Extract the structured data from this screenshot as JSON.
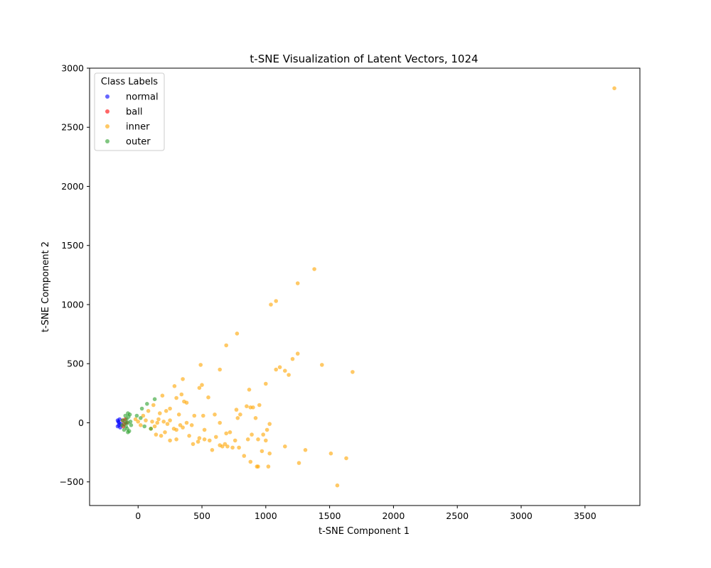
{
  "chart_data": {
    "type": "scatter",
    "title": "t-SNE Visualization of Latent Vectors, 1024",
    "xlabel": "t-SNE Component 1",
    "ylabel": "t-SNE Component 2",
    "xlim": [
      -380,
      3930
    ],
    "ylim": [
      -700,
      3000
    ],
    "xticks": [
      0,
      500,
      1000,
      1500,
      2000,
      2500,
      3000,
      3500
    ],
    "yticks": [
      -500,
      0,
      500,
      1000,
      1500,
      2000,
      2500,
      3000
    ],
    "grid": false,
    "legend": {
      "title": "Class Labels",
      "placement": "top-left"
    },
    "series": [
      {
        "name": "normal",
        "color": "#0000ff",
        "points": [
          [
            -160,
            -30
          ],
          [
            -155,
            10
          ],
          [
            -150,
            -20
          ],
          [
            -145,
            30
          ],
          [
            -140,
            -40
          ],
          [
            -150,
            0
          ],
          [
            -160,
            20
          ],
          [
            -135,
            -10
          ]
        ]
      },
      {
        "name": "ball",
        "color": "#ff0000",
        "points": [
          [
            -120,
            20
          ],
          [
            -110,
            -10
          ],
          [
            -100,
            30
          ],
          [
            -115,
            -30
          ],
          [
            -90,
            0
          ]
        ]
      },
      {
        "name": "inner",
        "color": "#ffa500",
        "points": [
          [
            3730,
            2830
          ],
          [
            1380,
            1300
          ],
          [
            1250,
            1180
          ],
          [
            1080,
            1030
          ],
          [
            1040,
            1000
          ],
          [
            775,
            755
          ],
          [
            690,
            655
          ],
          [
            1680,
            430
          ],
          [
            1440,
            490
          ],
          [
            1250,
            585
          ],
          [
            1210,
            540
          ],
          [
            1150,
            440
          ],
          [
            1180,
            405
          ],
          [
            1080,
            450
          ],
          [
            1110,
            470
          ],
          [
            490,
            490
          ],
          [
            640,
            450
          ],
          [
            350,
            370
          ],
          [
            340,
            240
          ],
          [
            550,
            215
          ],
          [
            285,
            310
          ],
          [
            480,
            295
          ],
          [
            500,
            320
          ],
          [
            300,
            210
          ],
          [
            250,
            120
          ],
          [
            220,
            100
          ],
          [
            190,
            230
          ],
          [
            170,
            80
          ],
          [
            120,
            150
          ],
          [
            80,
            100
          ],
          [
            160,
            30
          ],
          [
            200,
            10
          ],
          [
            230,
            -10
          ],
          [
            250,
            20
          ],
          [
            280,
            -50
          ],
          [
            300,
            -60
          ],
          [
            320,
            70
          ],
          [
            350,
            -40
          ],
          [
            360,
            180
          ],
          [
            380,
            170
          ],
          [
            400,
            -110
          ],
          [
            420,
            -20
          ],
          [
            440,
            60
          ],
          [
            470,
            -160
          ],
          [
            480,
            -130
          ],
          [
            510,
            60
          ],
          [
            520,
            -60
          ],
          [
            560,
            -150
          ],
          [
            580,
            -230
          ],
          [
            600,
            70
          ],
          [
            610,
            -120
          ],
          [
            640,
            0
          ],
          [
            660,
            -200
          ],
          [
            690,
            -90
          ],
          [
            700,
            -200
          ],
          [
            720,
            -80
          ],
          [
            740,
            -210
          ],
          [
            770,
            110
          ],
          [
            780,
            40
          ],
          [
            790,
            -210
          ],
          [
            800,
            70
          ],
          [
            830,
            -280
          ],
          [
            860,
            -140
          ],
          [
            870,
            280
          ],
          [
            880,
            -330
          ],
          [
            890,
            -100
          ],
          [
            900,
            130
          ],
          [
            920,
            40
          ],
          [
            940,
            -140
          ],
          [
            950,
            150
          ],
          [
            970,
            -240
          ],
          [
            980,
            -100
          ],
          [
            1000,
            330
          ],
          [
            1000,
            -150
          ],
          [
            1020,
            -370
          ],
          [
            1030,
            -260
          ],
          [
            940,
            -370
          ],
          [
            1010,
            -60
          ],
          [
            1030,
            -10
          ],
          [
            1150,
            -200
          ],
          [
            1260,
            -340
          ],
          [
            1310,
            -230
          ],
          [
            1510,
            -260
          ],
          [
            1560,
            -530
          ],
          [
            1630,
            -300
          ],
          [
            100,
            -50
          ],
          [
            130,
            -30
          ],
          [
            150,
            0
          ],
          [
            60,
            20
          ],
          [
            40,
            60
          ],
          [
            -20,
            30
          ],
          [
            0,
            10
          ],
          [
            20,
            -20
          ],
          [
            110,
            10
          ],
          [
            140,
            -100
          ],
          [
            180,
            -110
          ],
          [
            210,
            -80
          ],
          [
            250,
            -150
          ],
          [
            300,
            -140
          ],
          [
            330,
            -20
          ],
          [
            380,
            0
          ],
          [
            430,
            -180
          ],
          [
            520,
            -140
          ],
          [
            640,
            -190
          ],
          [
            680,
            -180
          ],
          [
            760,
            -150
          ],
          [
            850,
            140
          ],
          [
            880,
            130
          ],
          [
            930,
            -370
          ]
        ]
      },
      {
        "name": "outer",
        "color": "#2ca02c",
        "points": [
          [
            -80,
            0
          ],
          [
            -90,
            30
          ],
          [
            -95,
            -30
          ],
          [
            -75,
            50
          ],
          [
            -85,
            -50
          ],
          [
            -100,
            60
          ],
          [
            -110,
            -60
          ],
          [
            -70,
            -70
          ],
          [
            -65,
            70
          ],
          [
            -120,
            20
          ],
          [
            -125,
            -20
          ],
          [
            -60,
            10
          ],
          [
            -55,
            -20
          ],
          [
            -100,
            0
          ],
          [
            -80,
            80
          ],
          [
            -80,
            -80
          ],
          [
            130,
            200
          ],
          [
            70,
            160
          ],
          [
            30,
            120
          ],
          [
            100,
            -50
          ],
          [
            50,
            -30
          ],
          [
            20,
            40
          ],
          [
            -10,
            60
          ]
        ]
      }
    ]
  }
}
